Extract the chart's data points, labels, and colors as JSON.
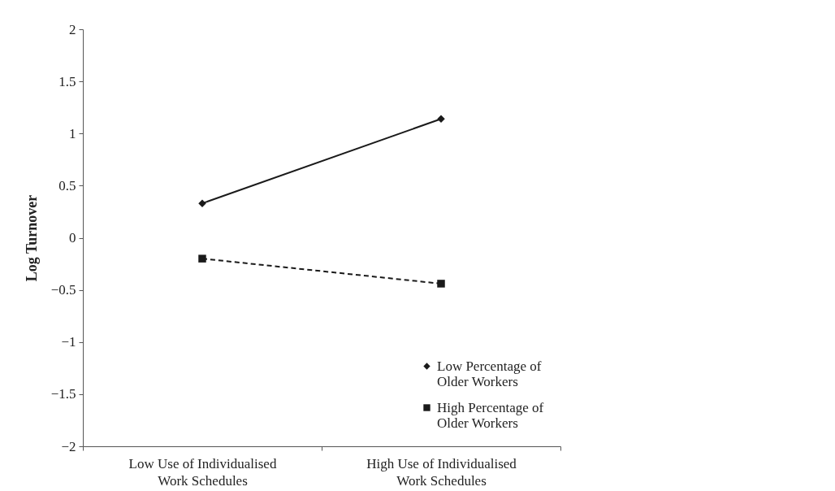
{
  "chart_data": {
    "type": "line",
    "ylabel": "Log Turnover",
    "categories": [
      "Low Use of Individualised Work Schedules",
      "High Use of Individualised Work Schedules"
    ],
    "series": [
      {
        "name": "Low Percentage of Older Workers",
        "color": "#1a1a1a",
        "values": [
          0.33,
          1.14
        ],
        "marker": "diamond",
        "line_style": "solid"
      },
      {
        "name": "High Percentage of Older Workers",
        "color": "#1a1a1a",
        "values": [
          -0.2,
          -0.44
        ],
        "marker": "square",
        "line_style": "dashed"
      }
    ],
    "ylim": [
      -2,
      2
    ],
    "yticks": [
      -2,
      -1.5,
      -1,
      -0.5,
      0,
      0.5,
      1,
      1.5,
      2
    ],
    "grid": false,
    "legend": "bottom right"
  }
}
